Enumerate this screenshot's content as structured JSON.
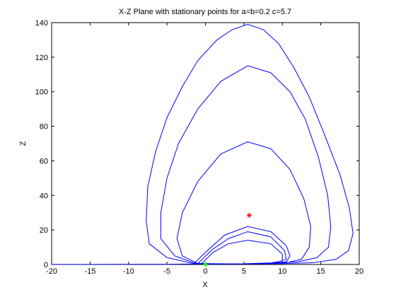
{
  "chart_data": {
    "type": "line",
    "title": "X-Z Plane with stationary points for a=b=0.2 c=5.7",
    "xlabel": "X",
    "ylabel": "Z",
    "xlim": [
      -20,
      20
    ],
    "ylim": [
      0,
      140
    ],
    "xticks": [
      -20,
      -15,
      -10,
      -5,
      0,
      5,
      10,
      15,
      20
    ],
    "yticks": [
      0,
      20,
      40,
      60,
      80,
      100,
      120,
      140
    ],
    "color": "#0000ff",
    "x": [
      -20,
      -15,
      -10,
      -5,
      -1.5,
      -0.5,
      1,
      3,
      5.5,
      8.5,
      10,
      10,
      8,
      4,
      0,
      -1,
      1,
      3,
      5.5,
      8.5,
      10.3,
      10.5,
      9,
      4,
      0,
      -1.5,
      0,
      2.5,
      5.5,
      8.5,
      10.5,
      11,
      10.5,
      8,
      4,
      0,
      -1,
      -3,
      -3.7,
      -3,
      -1,
      2,
      5.5,
      8.5,
      11,
      12.8,
      13.7,
      13.5,
      12.5,
      10.5,
      5,
      0,
      -1.5,
      -4,
      -5.8,
      -5.8,
      -5,
      -3.5,
      -1,
      2,
      5.5,
      8.5,
      11,
      13,
      14.7,
      15.9,
      16.3,
      16,
      14.5,
      12,
      5,
      0,
      -1.5,
      -5,
      -7.3,
      -7.7,
      -7.5,
      -6.5,
      -5,
      -3,
      -1,
      1.5,
      3.5,
      5.5,
      7.5,
      9.5,
      11.5,
      13.5,
      15.5,
      17.5,
      18.7,
      19.2,
      18.6,
      17,
      14,
      10,
      5,
      0
    ],
    "values": [
      0.05,
      0.05,
      0.1,
      0.1,
      0.3,
      0.5,
      7,
      12,
      14,
      12,
      6,
      2,
      0.5,
      0.3,
      0.5,
      0.5,
      9,
      15,
      19,
      16,
      8,
      3,
      0.8,
      0.3,
      0.3,
      0.5,
      7,
      17,
      22,
      19,
      11,
      5,
      1.5,
      0.5,
      0.3,
      0.3,
      0.5,
      5,
      15,
      30,
      48,
      64,
      71,
      67,
      55,
      38,
      22,
      10,
      3,
      1,
      0.4,
      0.3,
      1,
      5,
      15,
      30,
      50,
      70,
      90,
      106,
      115,
      111,
      100,
      84,
      62,
      40,
      22,
      10,
      4,
      1.5,
      0.4,
      0.3,
      0.5,
      4,
      12,
      25,
      45,
      65,
      85,
      103,
      118,
      130,
      136,
      139,
      136,
      128,
      114,
      97,
      75,
      52,
      33,
      18,
      8,
      3,
      1,
      0.5,
      0.3,
      0.2
    ],
    "points": [
      {
        "x": 5.693,
        "y": 28.46,
        "color": "#ff0000"
      },
      {
        "x": 0.007,
        "y": 0.035,
        "color": "#00ff00"
      }
    ]
  }
}
